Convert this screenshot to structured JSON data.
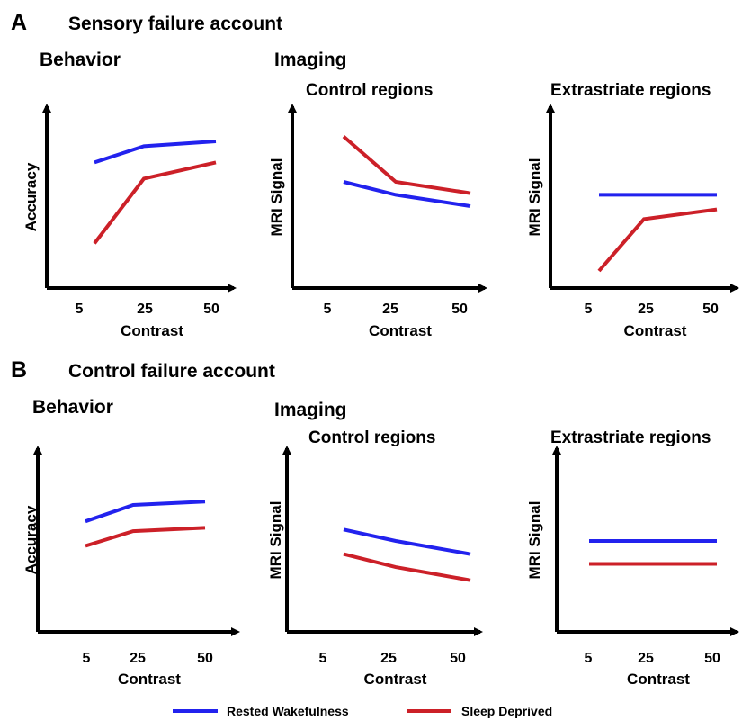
{
  "panels": {
    "A": {
      "letter": "A",
      "title": "Sensory failure account"
    },
    "B": {
      "letter": "B",
      "title": "Control failure account"
    }
  },
  "sections": {
    "behavior": "Behavior",
    "imaging": "Imaging"
  },
  "legend": {
    "rested": {
      "label": "Rested Wakefulness",
      "color": "#2222ee"
    },
    "sleep": {
      "label": "Sleep Deprived",
      "color": "#cc2028"
    }
  },
  "chart_data": [
    {
      "type": "line",
      "panel": "A",
      "subtitle": "",
      "xlabel": "Contrast",
      "ylabel": "Accuracy",
      "categories": [
        "5",
        "25",
        "50"
      ],
      "ylim": [
        0,
        100
      ],
      "series": [
        {
          "name": "Rested Wakefulness",
          "values": [
            72,
            82,
            85
          ]
        },
        {
          "name": "Sleep Deprived",
          "values": [
            22,
            62,
            72
          ]
        }
      ]
    },
    {
      "type": "line",
      "panel": "A",
      "subtitle": "Control regions",
      "xlabel": "Contrast",
      "ylabel": "MRI Signal",
      "categories": [
        "5",
        "25",
        "50"
      ],
      "ylim": [
        0,
        100
      ],
      "series": [
        {
          "name": "Rested Wakefulness",
          "values": [
            60,
            52,
            45
          ]
        },
        {
          "name": "Sleep Deprived",
          "values": [
            88,
            60,
            53
          ]
        }
      ]
    },
    {
      "type": "line",
      "panel": "A",
      "subtitle": "Extrastriate regions",
      "xlabel": "Contrast",
      "ylabel": "MRI Signal",
      "categories": [
        "5",
        "25",
        "50"
      ],
      "ylim": [
        0,
        100
      ],
      "series": [
        {
          "name": "Rested Wakefulness",
          "values": [
            52,
            52,
            52
          ]
        },
        {
          "name": "Sleep Deprived",
          "values": [
            5,
            37,
            43
          ]
        }
      ]
    },
    {
      "type": "line",
      "panel": "B",
      "subtitle": "",
      "xlabel": "Contrast",
      "ylabel": "Accuracy",
      "categories": [
        "5",
        "25",
        "50"
      ],
      "ylim": [
        0,
        100
      ],
      "series": [
        {
          "name": "Rested Wakefulness",
          "values": [
            62,
            72,
            74
          ]
        },
        {
          "name": "Sleep Deprived",
          "values": [
            47,
            56,
            58
          ]
        }
      ]
    },
    {
      "type": "line",
      "panel": "B",
      "subtitle": "Control regions",
      "xlabel": "Contrast",
      "ylabel": "MRI Signal",
      "categories": [
        "5",
        "25",
        "50"
      ],
      "ylim": [
        0,
        100
      ],
      "series": [
        {
          "name": "Rested Wakefulness",
          "values": [
            57,
            50,
            42
          ]
        },
        {
          "name": "Sleep Deprived",
          "values": [
            42,
            34,
            26
          ]
        }
      ]
    },
    {
      "type": "line",
      "panel": "B",
      "subtitle": "Extrastriate regions",
      "xlabel": "Contrast",
      "ylabel": "MRI Signal",
      "categories": [
        "5",
        "25",
        "50"
      ],
      "ylim": [
        0,
        100
      ],
      "series": [
        {
          "name": "Rested Wakefulness",
          "values": [
            50,
            50,
            50
          ]
        },
        {
          "name": "Sleep Deprived",
          "values": [
            36,
            36,
            36
          ]
        }
      ]
    }
  ]
}
